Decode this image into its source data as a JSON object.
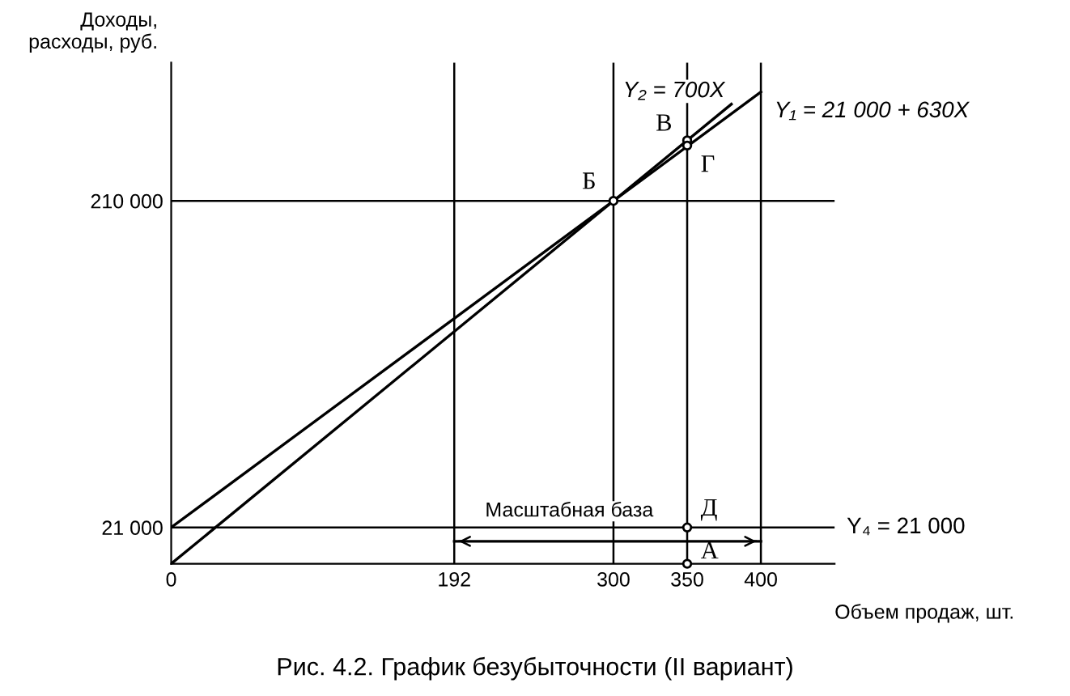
{
  "chart_data": {
    "type": "line",
    "xlabel": "Объем продаж, шт.",
    "ylabel": "Доходы,\nрасходы, руб.",
    "series": [
      {
        "name": "Y₂ = 700X",
        "color": "#000000",
        "x": [
          0,
          380
        ],
        "values": [
          0,
          266000
        ]
      },
      {
        "name": "Y₁ = 21 000 + 630X",
        "color": "#000000",
        "x": [
          0,
          400
        ],
        "values": [
          21000,
          273000
        ]
      },
      {
        "type": "scatter",
        "color": "#000000",
        "x": [
          300,
          350,
          350,
          350,
          350
        ],
        "values": [
          210000,
          245000,
          242000,
          21000,
          0
        ]
      },
      {
        "color": "#000000",
        "x": [
          192,
          400
        ],
        "values": [
          13000,
          13000
        ]
      }
    ],
    "annotations": [
      {
        "text": "Б",
        "x": 300,
        "y": 210000
      },
      {
        "text": "В",
        "x": 350,
        "y": 245000
      },
      {
        "text": "Г",
        "x": 350,
        "y": 242000
      },
      {
        "text": "Д",
        "x": 350,
        "y": 21000
      },
      {
        "text": "А",
        "x": 350,
        "y": 0
      },
      {
        "text": "Масштабная база",
        "x": 270,
        "y": 21000
      },
      "Рис. 4.2. График безубыточности (II вариант)"
    ],
    "ref_lines": [
      {
        "axis": "y",
        "value": 21000,
        "label": "Y₄ = 21 000"
      },
      {
        "axis": "y",
        "value": 210000
      },
      {
        "axis": "x",
        "value": 192
      },
      {
        "axis": "x",
        "value": 300
      },
      {
        "axis": "x",
        "value": 350
      },
      {
        "axis": "x",
        "value": 400
      }
    ],
    "xlim": [
      0,
      450
    ],
    "ylim": [
      0,
      290000
    ],
    "xticks": [
      0,
      192,
      300,
      350,
      400
    ],
    "yticks": [
      {
        "value": 21000,
        "label": "21 000"
      },
      {
        "value": 210000,
        "label": "210 000"
      }
    ],
    "line_style": "solid",
    "grid": false,
    "legend": false
  }
}
